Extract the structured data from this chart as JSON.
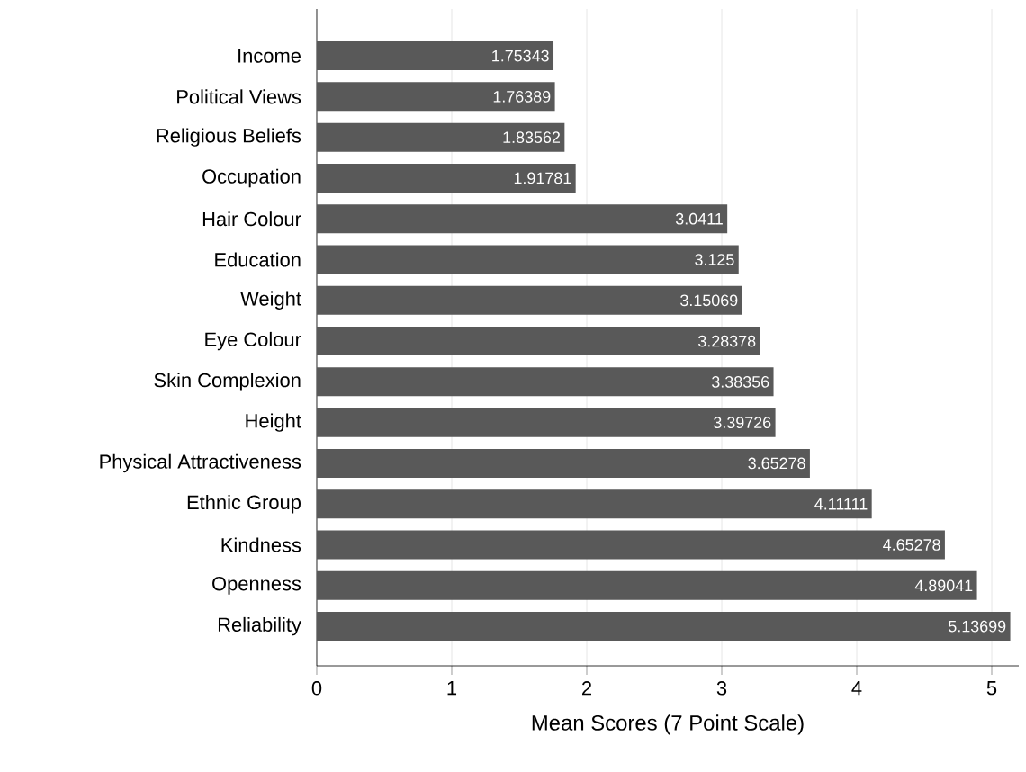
{
  "chart_data": {
    "type": "bar",
    "orientation": "horizontal",
    "xlabel": "Mean Scores (7 Point Scale)",
    "categories": [
      "Income",
      "Political Views",
      "Religious Beliefs",
      "Occupation",
      "Hair Colour",
      "Education",
      "Weight",
      "Eye Colour",
      "Skin Complexion",
      "Height",
      "Physical Attractiveness",
      "Ethnic Group",
      "Kindness",
      "Openness",
      "Reliability"
    ],
    "values": [
      1.75343,
      1.76389,
      1.83562,
      1.91781,
      3.0411,
      3.125,
      3.15069,
      3.28378,
      3.38356,
      3.39726,
      3.65278,
      4.11111,
      4.65278,
      4.89041,
      5.13699
    ],
    "color": "#595959",
    "xlim": [
      0,
      5.2
    ],
    "xticks": [
      0,
      1,
      2,
      3,
      4,
      5
    ],
    "grid": "x",
    "data_labels": true
  }
}
